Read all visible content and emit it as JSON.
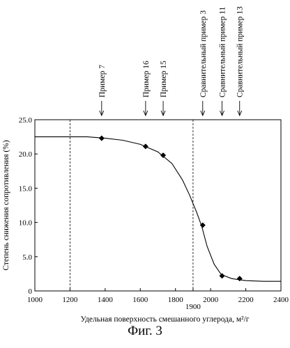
{
  "chart_data": {
    "type": "scatter",
    "xlabel": "Удельная поверхность смешанного углерода, м²/г",
    "ylabel": "Степень снижения сопротивления (%)",
    "xlim": [
      1000,
      2400
    ],
    "ylim": [
      0,
      25
    ],
    "x_ticks": [
      "1000",
      "1200",
      "1400",
      "1600",
      "1800",
      "2000",
      "2200",
      "2400"
    ],
    "y_ticks": [
      "0",
      "5.0",
      "10.0",
      "15.0",
      "20.0",
      "25.0"
    ],
    "extra_x_label": {
      "x": 1900,
      "text": "1900"
    },
    "vertical_lines": [
      1200,
      1900
    ],
    "grid": false,
    "points": [
      {
        "x": 1380,
        "y": 22.3
      },
      {
        "x": 1630,
        "y": 21.1
      },
      {
        "x": 1730,
        "y": 19.8
      },
      {
        "x": 1955,
        "y": 9.6
      },
      {
        "x": 2065,
        "y": 2.2
      },
      {
        "x": 2165,
        "y": 1.8
      }
    ],
    "curve": [
      {
        "x": 1000,
        "y": 22.5
      },
      {
        "x": 1300,
        "y": 22.5
      },
      {
        "x": 1400,
        "y": 22.3
      },
      {
        "x": 1500,
        "y": 22.0
      },
      {
        "x": 1600,
        "y": 21.4
      },
      {
        "x": 1700,
        "y": 20.3
      },
      {
        "x": 1780,
        "y": 18.6
      },
      {
        "x": 1840,
        "y": 16.2
      },
      {
        "x": 1880,
        "y": 14.0
      },
      {
        "x": 1920,
        "y": 11.5
      },
      {
        "x": 1950,
        "y": 9.4
      },
      {
        "x": 1980,
        "y": 6.5
      },
      {
        "x": 2020,
        "y": 3.9
      },
      {
        "x": 2060,
        "y": 2.4
      },
      {
        "x": 2120,
        "y": 1.8
      },
      {
        "x": 2200,
        "y": 1.5
      },
      {
        "x": 2300,
        "y": 1.4
      },
      {
        "x": 2400,
        "y": 1.4
      }
    ],
    "annotations": [
      {
        "x": 1380,
        "text": "Пример 7"
      },
      {
        "x": 1630,
        "text": "Пример 16"
      },
      {
        "x": 1730,
        "text": "Пример 15"
      },
      {
        "x": 1955,
        "text": "Сравнительный пример 3"
      },
      {
        "x": 2065,
        "text": "Сравнительный пример 11"
      },
      {
        "x": 2165,
        "text": "Сравнительный пример 13"
      }
    ]
  },
  "caption": "Фиг. 3"
}
